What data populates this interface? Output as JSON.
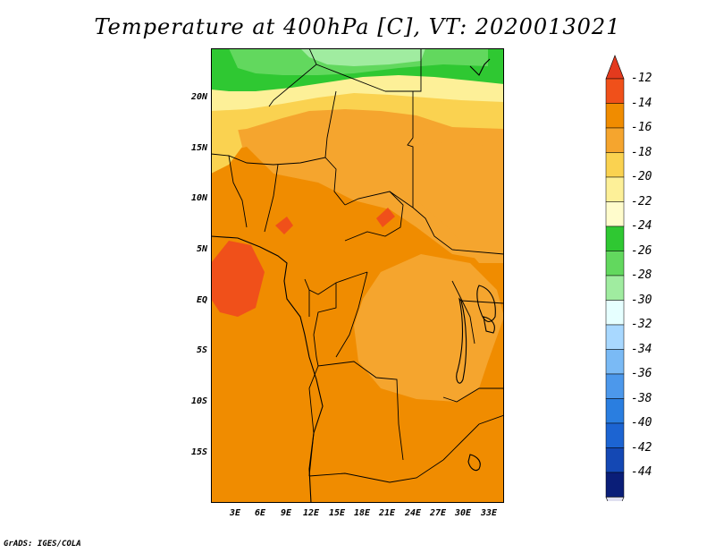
{
  "title": "Temperature at 400hPa [C], VT: 2020013021",
  "credit": "GrADS: IGES/COLA",
  "map": {
    "lat_labels": [
      "20N",
      "15N",
      "10N",
      "5N",
      "EQ",
      "5S",
      "10S",
      "15S"
    ],
    "lon_labels": [
      "3E",
      "6E",
      "9E",
      "12E",
      "15E",
      "18E",
      "21E",
      "24E",
      "27E",
      "30E",
      "33E"
    ]
  },
  "colorbar": {
    "labels": [
      "-12",
      "-14",
      "-16",
      "-18",
      "-20",
      "-22",
      "-24",
      "-26",
      "-28",
      "-30",
      "-32",
      "-34",
      "-36",
      "-38",
      "-40",
      "-42",
      "-44"
    ],
    "colors": [
      "#f0501a",
      "#f08c00",
      "#f5a52e",
      "#fad250",
      "#fdf098",
      "#fffccc",
      "#2fc832",
      "#62d85e",
      "#a0eca0",
      "#e6ffff",
      "#a8d8ff",
      "#7abaf5",
      "#4c98eb",
      "#2a7ee0",
      "#1c64d2",
      "#1448b4",
      "#0a1e78"
    ],
    "top_arrow_color": "#e33a1e",
    "bottom_arrow_color": "#e0e0f0"
  }
}
